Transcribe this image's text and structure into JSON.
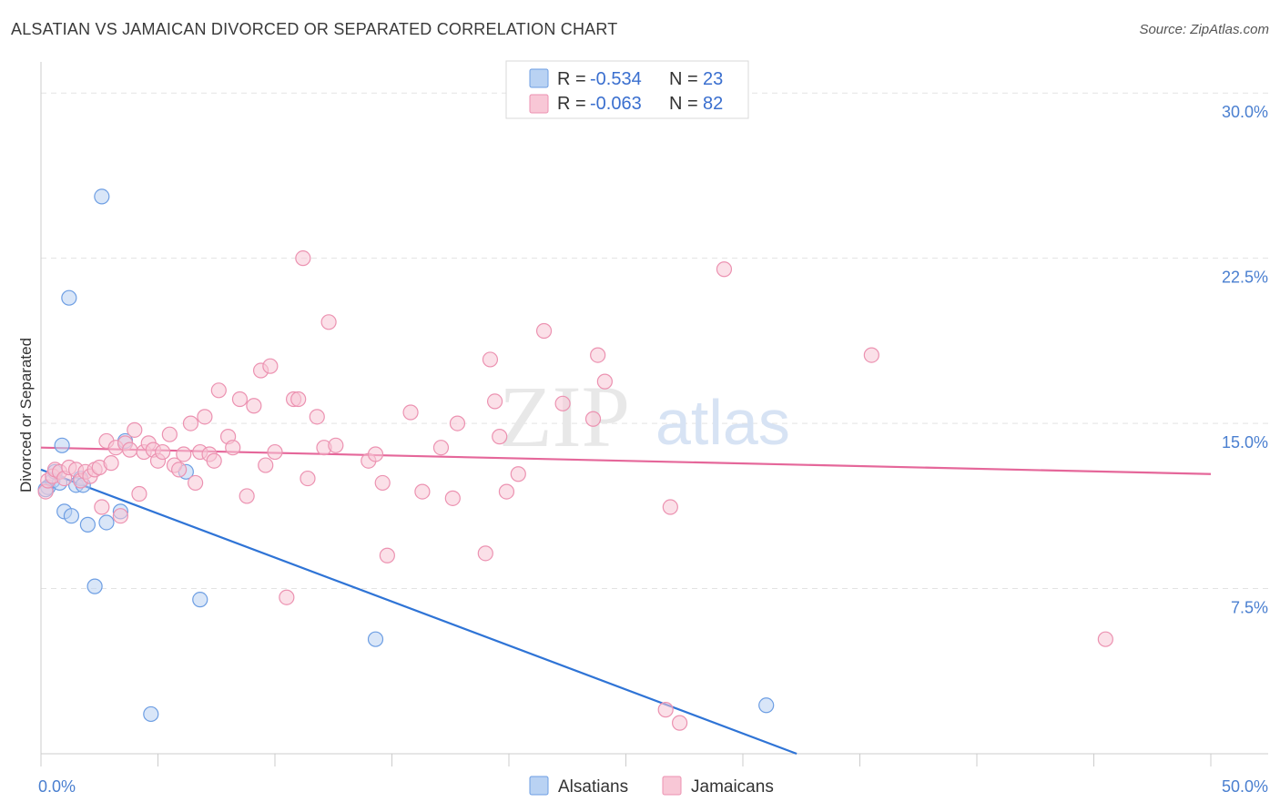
{
  "title": "ALSATIAN VS JAMAICAN DIVORCED OR SEPARATED CORRELATION CHART",
  "source": "Source: ZipAtlas.com",
  "watermark": {
    "zip": "ZIP",
    "atlas": "atlas"
  },
  "colors": {
    "alsatian_fill": "#b9d2f3",
    "alsatian_stroke": "#6d9ee3",
    "alsatian_line": "#2f74d6",
    "jamaican_fill": "#f8c7d6",
    "jamaican_stroke": "#ec92b1",
    "jamaican_line": "#e5679a",
    "tick_text": "#4a7fd0",
    "grid": "#e3e3e3"
  },
  "legend": {
    "row1": {
      "r_label": "R =",
      "r_value": "-0.534",
      "n_label": "N =",
      "n_value": "23"
    },
    "row2": {
      "r_label": "R =",
      "r_value": "-0.063",
      "n_label": "N =",
      "n_value": "82"
    }
  },
  "bottom_legend": {
    "a": "Alsatians",
    "b": "Jamaicans"
  },
  "chart_data": {
    "type": "scatter",
    "ylabel": "Divorced or Separated",
    "xlim": [
      0,
      50
    ],
    "ylim": [
      0,
      31
    ],
    "x_tick_labels": {
      "left": "0.0%",
      "right": "50.0%"
    },
    "y_ticks": [
      {
        "value": 7.5,
        "label": "7.5%"
      },
      {
        "value": 15.0,
        "label": "15.0%"
      },
      {
        "value": 22.5,
        "label": "22.5%"
      },
      {
        "value": 30.0,
        "label": "30.0%"
      }
    ],
    "grid": true,
    "series": [
      {
        "name": "Alsatians",
        "points": [
          [
            0.3,
            12.1
          ],
          [
            0.5,
            12.4
          ],
          [
            0.6,
            12.8
          ],
          [
            0.8,
            12.3
          ],
          [
            0.9,
            14.0
          ],
          [
            1.0,
            11.0
          ],
          [
            1.2,
            20.7
          ],
          [
            1.3,
            10.8
          ],
          [
            1.5,
            12.2
          ],
          [
            1.7,
            12.5
          ],
          [
            1.8,
            12.2
          ],
          [
            2.0,
            10.4
          ],
          [
            2.3,
            7.6
          ],
          [
            2.6,
            25.3
          ],
          [
            2.8,
            10.5
          ],
          [
            3.4,
            11.0
          ],
          [
            3.6,
            14.2
          ],
          [
            4.7,
            1.8
          ],
          [
            6.2,
            12.8
          ],
          [
            6.8,
            7.0
          ],
          [
            14.3,
            5.2
          ],
          [
            31.0,
            2.2
          ],
          [
            0.2,
            12.0
          ]
        ],
        "trend": {
          "x": [
            0.0,
            32.3
          ],
          "y": [
            12.9,
            0.0
          ]
        }
      },
      {
        "name": "Jamaicans",
        "points": [
          [
            0.2,
            11.9
          ],
          [
            0.3,
            12.4
          ],
          [
            0.5,
            12.6
          ],
          [
            0.6,
            12.9
          ],
          [
            0.8,
            12.8
          ],
          [
            1.0,
            12.5
          ],
          [
            1.2,
            13.0
          ],
          [
            1.5,
            12.9
          ],
          [
            1.7,
            12.4
          ],
          [
            1.9,
            12.8
          ],
          [
            2.1,
            12.6
          ],
          [
            2.3,
            12.9
          ],
          [
            2.5,
            13.0
          ],
          [
            2.6,
            11.2
          ],
          [
            2.8,
            14.2
          ],
          [
            3.0,
            13.2
          ],
          [
            3.2,
            13.9
          ],
          [
            3.4,
            10.8
          ],
          [
            3.6,
            14.1
          ],
          [
            3.8,
            13.8
          ],
          [
            4.0,
            14.7
          ],
          [
            4.2,
            11.8
          ],
          [
            4.4,
            13.7
          ],
          [
            4.6,
            14.1
          ],
          [
            4.8,
            13.8
          ],
          [
            5.0,
            13.3
          ],
          [
            5.2,
            13.7
          ],
          [
            5.5,
            14.5
          ],
          [
            5.7,
            13.1
          ],
          [
            5.9,
            12.9
          ],
          [
            6.1,
            13.6
          ],
          [
            6.4,
            15.0
          ],
          [
            6.6,
            12.3
          ],
          [
            6.8,
            13.7
          ],
          [
            7.0,
            15.3
          ],
          [
            7.2,
            13.6
          ],
          [
            7.4,
            13.3
          ],
          [
            7.6,
            16.5
          ],
          [
            8.0,
            14.4
          ],
          [
            8.2,
            13.9
          ],
          [
            8.5,
            16.1
          ],
          [
            8.8,
            11.7
          ],
          [
            9.1,
            15.8
          ],
          [
            9.4,
            17.4
          ],
          [
            9.6,
            13.1
          ],
          [
            9.8,
            17.6
          ],
          [
            10.0,
            13.7
          ],
          [
            10.5,
            7.1
          ],
          [
            10.8,
            16.1
          ],
          [
            11.0,
            16.1
          ],
          [
            11.2,
            22.5
          ],
          [
            11.4,
            12.5
          ],
          [
            11.8,
            15.3
          ],
          [
            12.1,
            13.9
          ],
          [
            12.3,
            19.6
          ],
          [
            12.6,
            14.0
          ],
          [
            14.0,
            13.3
          ],
          [
            14.3,
            13.6
          ],
          [
            14.6,
            12.3
          ],
          [
            14.8,
            9.0
          ],
          [
            15.8,
            15.5
          ],
          [
            16.3,
            11.9
          ],
          [
            17.1,
            13.9
          ],
          [
            17.6,
            11.6
          ],
          [
            17.8,
            15.0
          ],
          [
            19.0,
            9.1
          ],
          [
            19.2,
            17.9
          ],
          [
            19.4,
            16.0
          ],
          [
            19.6,
            14.4
          ],
          [
            19.9,
            11.9
          ],
          [
            20.4,
            12.7
          ],
          [
            21.5,
            19.2
          ],
          [
            22.3,
            15.9
          ],
          [
            23.6,
            15.2
          ],
          [
            23.8,
            18.1
          ],
          [
            24.1,
            16.9
          ],
          [
            26.7,
            2.0
          ],
          [
            26.9,
            11.2
          ],
          [
            27.3,
            1.4
          ],
          [
            29.2,
            22.0
          ],
          [
            35.5,
            18.1
          ],
          [
            45.5,
            5.2
          ]
        ],
        "trend": {
          "x": [
            0.0,
            50.0
          ],
          "y": [
            13.9,
            12.7
          ]
        }
      }
    ]
  }
}
